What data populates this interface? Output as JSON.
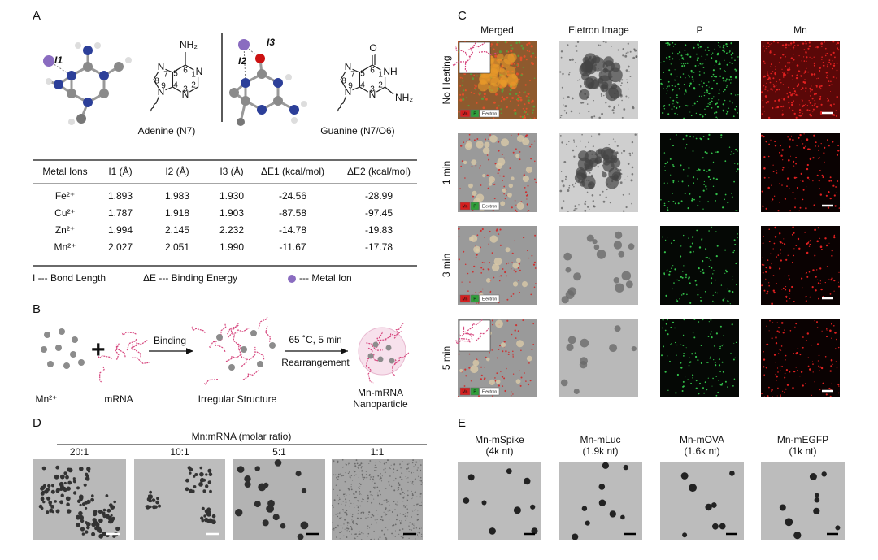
{
  "panel_labels": [
    "A",
    "B",
    "C",
    "D",
    "E"
  ],
  "panel_a": {
    "distance_labels": [
      "I1",
      "I2",
      "I3"
    ],
    "adenine_atoms": [
      "NH₂",
      "N",
      "7",
      "8",
      "9",
      "N",
      "5",
      "6",
      "1",
      "N",
      "4",
      "3",
      "2",
      "N"
    ],
    "adenine_name": "Adenine (N7)",
    "guanine_atoms": [
      "O",
      "N",
      "7",
      "8",
      "9",
      "N",
      "5",
      "6",
      "NH",
      "1",
      "4",
      "3",
      "2",
      "N",
      "NH₂"
    ],
    "guanine_name": "Guanine (N7/O6)",
    "table": {
      "header": [
        "Metal Ions",
        "I1 (Å)",
        "I2 (Å)",
        "I3 (Å)",
        "ΔE1 (kcal/mol)",
        "ΔE2 (kcal/mol)"
      ],
      "rows": [
        [
          "Fe²⁺",
          "1.893",
          "1.983",
          "1.930",
          "-24.56",
          "-28.99"
        ],
        [
          "Cu²⁺",
          "1.787",
          "1.918",
          "1.903",
          "-87.58",
          "-97.45"
        ],
        [
          "Zn²⁺",
          "1.994",
          "2.145",
          "2.232",
          "-14.78",
          "-19.83"
        ],
        [
          "Mn²⁺",
          "2.027",
          "2.051",
          "1.990",
          "-11.67",
          "-17.78"
        ]
      ]
    },
    "legend": [
      "I --- Bond Length",
      "ΔE --- Binding Energy",
      "--- Metal Ion"
    ]
  },
  "panel_b": {
    "items": [
      "Mn²⁺",
      "mRNA",
      "Irregular Structure"
    ],
    "step1": "Binding",
    "step2": [
      "65 ˚C, 5 min",
      "Rearrangement"
    ],
    "product": [
      "Mn-mRNA",
      "Nanoparticle"
    ]
  },
  "panel_c": {
    "columns": [
      "Merged",
      "Eletron Image",
      "P",
      "Mn"
    ],
    "rows": [
      "No Heating",
      "1 min",
      "3 min",
      "5 min"
    ],
    "inset_legend": [
      "Mn",
      "P",
      "Electron"
    ]
  },
  "panel_d": {
    "axis_title": "Mn:mRNA (molar ratio)",
    "ratios": [
      "20:1",
      "10:1",
      "5:1",
      "1:1"
    ]
  },
  "panel_e": {
    "samples": [
      {
        "name": "Mn-mSpike",
        "length": "(4k nt)"
      },
      {
        "name": "Mn-mLuc",
        "length": "(1.9k nt)"
      },
      {
        "name": "Mn-mOVA",
        "length": "(1.6k nt)"
      },
      {
        "name": "Mn-mEGFP",
        "length": "(1k nt)"
      }
    ]
  }
}
